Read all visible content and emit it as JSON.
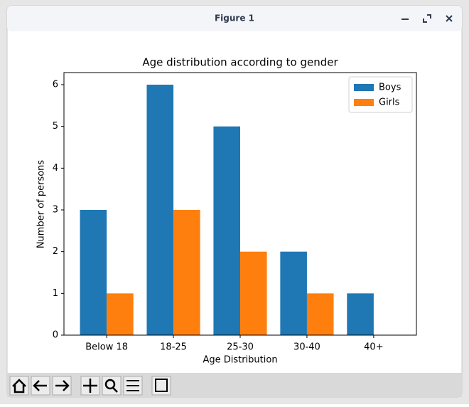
{
  "window": {
    "title": "Figure 1"
  },
  "chart_data": {
    "type": "bar",
    "title": "Age distribution according to gender",
    "x_label": "Age Distribution",
    "y_label": "Number of persons",
    "categories": [
      "Below 18",
      "18-25",
      "25-30",
      "30-40",
      "40+"
    ],
    "series": [
      {
        "name": "Boys",
        "color": "#1f77b4",
        "values": [
          3,
          6,
          5,
          2,
          1
        ]
      },
      {
        "name": "Girls",
        "color": "#ff7f0e",
        "values": [
          1,
          3,
          2,
          1,
          0
        ]
      }
    ],
    "ylim": [
      0,
      6.29
    ],
    "yticks": [
      0,
      1,
      2,
      3,
      4,
      5,
      6
    ],
    "grid": false,
    "legend": "upper right"
  }
}
